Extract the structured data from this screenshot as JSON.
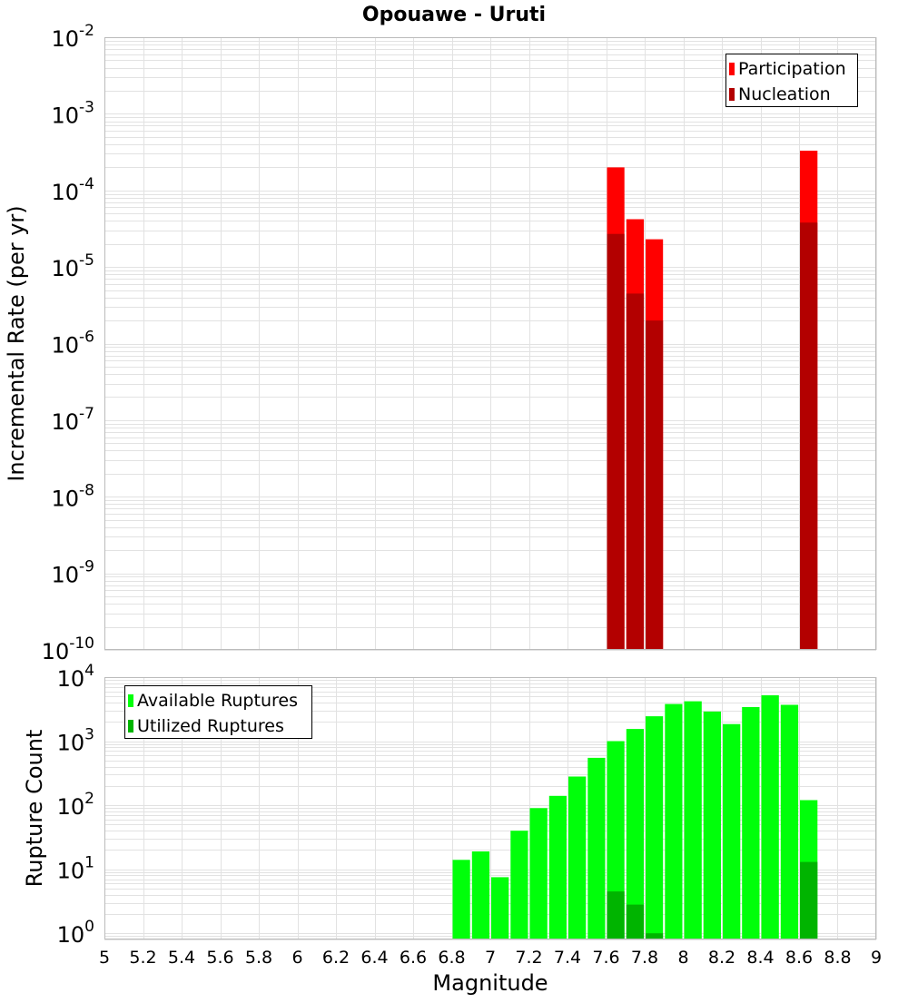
{
  "title": "Opouawe - Uruti",
  "colors": {
    "participation": "#ff0000",
    "nucleation": "#b30000",
    "available": "#00ff0a",
    "utilized": "#00b400",
    "grid": "#e2e2e2",
    "frame": "#bbbbbb"
  },
  "chart_data": [
    {
      "type": "bar",
      "panel": "top",
      "title": "Opouawe - Uruti",
      "xlabel": "",
      "ylabel": "Incremental Rate (per yr)",
      "yscale": "log",
      "xlim": [
        5,
        9
      ],
      "ylim": [
        1e-10,
        0.01
      ],
      "grid": true,
      "legend_position": "top-right",
      "y_ticks": [
        {
          "base": "10",
          "exp": "-10"
        },
        {
          "base": "10",
          "exp": "-9"
        },
        {
          "base": "10",
          "exp": "-8"
        },
        {
          "base": "10",
          "exp": "-7"
        },
        {
          "base": "10",
          "exp": "-6"
        },
        {
          "base": "10",
          "exp": "-5"
        },
        {
          "base": "10",
          "exp": "-4"
        },
        {
          "base": "10",
          "exp": "-3"
        },
        {
          "base": "10",
          "exp": "-2"
        }
      ],
      "bin_width": 0.1,
      "series": [
        {
          "name": "Participation",
          "color": "#ff0000",
          "x": [
            7.65,
            7.75,
            7.85,
            8.65
          ],
          "values": [
            0.0002,
            4.2e-05,
            2.3e-05,
            0.00033
          ]
        },
        {
          "name": "Nucleation",
          "color": "#b30000",
          "x": [
            7.65,
            7.75,
            7.85,
            8.65
          ],
          "values": [
            2.7e-05,
            4.5e-06,
            2e-06,
            3.8e-05
          ]
        }
      ]
    },
    {
      "type": "bar",
      "panel": "bottom",
      "xlabel": "Magnitude",
      "ylabel": "Rupture Count",
      "yscale": "log",
      "xlim": [
        5,
        9
      ],
      "ylim": [
        0.8,
        10000
      ],
      "grid": true,
      "legend_position": "top-left",
      "x_ticks": [
        "5",
        "5.2",
        "5.4",
        "5.6",
        "5.8",
        "6",
        "6.2",
        "6.4",
        "6.6",
        "6.8",
        "7",
        "7.2",
        "7.4",
        "7.6",
        "7.8",
        "8",
        "8.2",
        "8.4",
        "8.6",
        "8.8",
        "9"
      ],
      "y_ticks": [
        {
          "base": "10",
          "exp": "0"
        },
        {
          "base": "10",
          "exp": "1"
        },
        {
          "base": "10",
          "exp": "2"
        },
        {
          "base": "10",
          "exp": "3"
        },
        {
          "base": "10",
          "exp": "4"
        }
      ],
      "bin_width": 0.1,
      "series": [
        {
          "name": "Available Ruptures",
          "color": "#00ff0a",
          "x": [
            6.85,
            6.95,
            7.05,
            7.15,
            7.25,
            7.35,
            7.45,
            7.55,
            7.65,
            7.75,
            7.85,
            7.95,
            8.05,
            8.15,
            8.25,
            8.35,
            8.45,
            8.55,
            8.65
          ],
          "values": [
            14,
            19,
            7.5,
            40,
            90,
            140,
            280,
            550,
            1000,
            1550,
            2450,
            3800,
            4200,
            2900,
            1850,
            3400,
            5200,
            3700,
            120
          ]
        },
        {
          "name": "Utilized Ruptures",
          "color": "#00b400",
          "x": [
            7.65,
            7.75,
            7.85,
            8.65
          ],
          "values": [
            4.5,
            2.8,
            1,
            13
          ]
        }
      ]
    }
  ]
}
